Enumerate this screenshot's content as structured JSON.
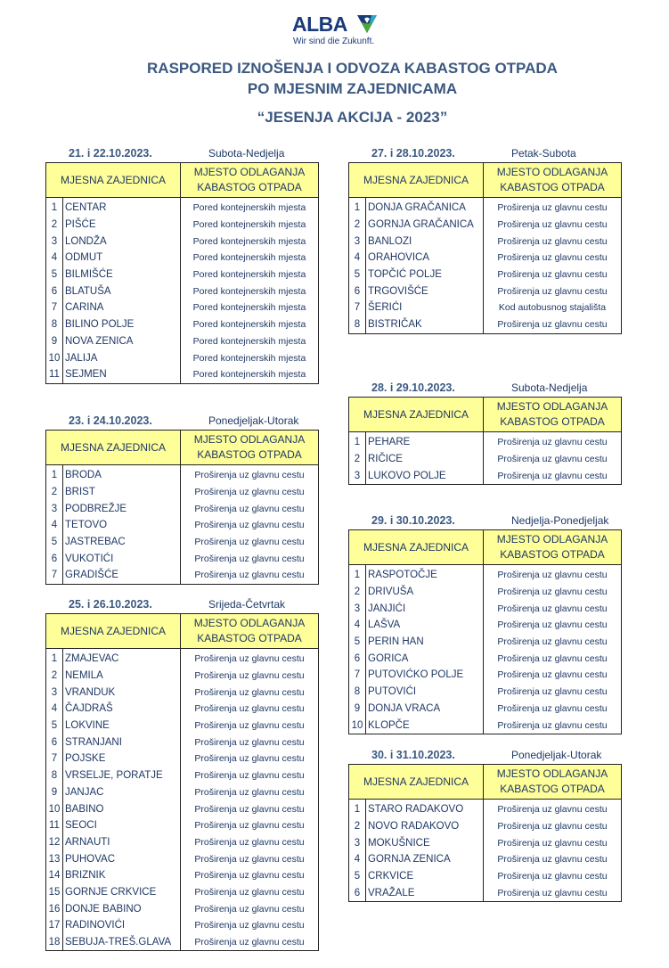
{
  "logo": {
    "brand": "ALBA",
    "tagline": "Wir sind die Zukunft.",
    "colors": {
      "blue": "#1a3a7a",
      "green": "#4aa53c",
      "teal": "#2aa8c8"
    }
  },
  "title": {
    "line1": "RASPORED IZNOŠENJA I ODVOZA KABASTOG OTPADA",
    "line2": "PO MJESNIM ZAJEDNICAMA",
    "subtitle": "“JESENJA AKCIJA - 2023”"
  },
  "headers": {
    "community": "MJESNA ZAJEDNICA",
    "place_line1": "MJESTO ODLAGANJA",
    "place_line2": "KABASTOG OTPADA"
  },
  "colors": {
    "header_fill": "#ffff99",
    "text": "#1f3864",
    "title": "#3b5880"
  },
  "schedules": [
    {
      "column": "left",
      "date": "21. i 22.10.2023.",
      "days": "Subota-Nedjelja",
      "rows": [
        [
          "1",
          "CENTAR",
          "Pored kontejnerskih mjesta"
        ],
        [
          "2",
          "PIŠĆE",
          "Pored kontejnerskih mjesta"
        ],
        [
          "3",
          "LONDŽA",
          "Pored kontejnerskih mjesta"
        ],
        [
          "4",
          "ODMUT",
          "Pored kontejnerskih mjesta"
        ],
        [
          "5",
          "BILMIŠĆE",
          "Pored kontejnerskih mjesta"
        ],
        [
          "6",
          "BLATUŠA",
          "Pored kontejnerskih mjesta"
        ],
        [
          "7",
          "CARINA",
          "Pored kontejnerskih mjesta"
        ],
        [
          "8",
          "BILINO POLJE",
          "Pored kontejnerskih mjesta"
        ],
        [
          "9",
          "NOVA ZENICA",
          "Pored kontejnerskih mjesta"
        ],
        [
          "10",
          "JALIJA",
          "Pored kontejnerskih mjesta"
        ],
        [
          "11",
          "SEJMEN",
          "Pored kontejnerskih mjesta"
        ]
      ]
    },
    {
      "column": "left",
      "date": "23. i 24.10.2023.",
      "days": "Ponedjeljak-Utorak",
      "rows": [
        [
          "1",
          "BRODA",
          "Proširenja uz glavnu cestu"
        ],
        [
          "2",
          "BRIST",
          "Proširenja uz glavnu cestu"
        ],
        [
          "3",
          "PODBREŽJE",
          "Proširenja uz glavnu cestu"
        ],
        [
          "4",
          "TETOVO",
          "Proširenja uz glavnu cestu"
        ],
        [
          "5",
          "JASTREBAC",
          "Proširenja uz glavnu cestu"
        ],
        [
          "6",
          "VUKOTIĆI",
          "Proširenja uz glavnu cestu"
        ],
        [
          "7",
          "GRADIŠĆE",
          "Proširenja uz glavnu cestu"
        ]
      ]
    },
    {
      "column": "left",
      "date": "25. i 26.10.2023.",
      "days": "Srijeda-Četvrtak",
      "rows": [
        [
          "1",
          "ZMAJEVAC",
          "Proširenja uz glavnu cestu"
        ],
        [
          "2",
          "NEMILA",
          "Proširenja uz glavnu cestu"
        ],
        [
          "3",
          "VRANDUK",
          "Proširenja uz glavnu cestu"
        ],
        [
          "4",
          "ČAJDRAŠ",
          "Proširenja uz glavnu cestu"
        ],
        [
          "5",
          "LOKVINE",
          "Proširenja uz glavnu cestu"
        ],
        [
          "6",
          "STRANJANI",
          "Proširenja uz glavnu cestu"
        ],
        [
          "7",
          "POJSKE",
          "Proširenja uz glavnu cestu"
        ],
        [
          "8",
          "VRSELJE, PORATJE",
          "Proširenja uz glavnu cestu"
        ],
        [
          "9",
          "JANJAC",
          "Proširenja uz glavnu cestu"
        ],
        [
          "10",
          "BABINO",
          "Proširenja uz glavnu cestu"
        ],
        [
          "11",
          "SEOCI",
          "Proširenja uz glavnu cestu"
        ],
        [
          "12",
          "ARNAUTI",
          "Proširenja uz glavnu cestu"
        ],
        [
          "13",
          "PUHOVAC",
          "Proširenja uz glavnu cestu"
        ],
        [
          "14",
          "BRIZNIK",
          "Proširenja uz glavnu cestu"
        ],
        [
          "15",
          "GORNJE CRKVICE",
          "Proširenja uz glavnu cestu"
        ],
        [
          "16",
          "DONJE BABINO",
          "Proširenja uz glavnu cestu"
        ],
        [
          "17",
          "RADINOVIĆI",
          "Proširenja uz glavnu cestu"
        ],
        [
          "18",
          "SEBUJA-TREŠ.GLAVA",
          "Proširenja uz glavnu cestu"
        ]
      ]
    },
    {
      "column": "right",
      "date": "27. i 28.10.2023.",
      "days": "Petak-Subota",
      "rows": [
        [
          "1",
          "DONJA GRAČANICA",
          "Proširenja uz glavnu cestu"
        ],
        [
          "2",
          "GORNJA GRAČANICA",
          "Proširenja uz glavnu cestu"
        ],
        [
          "3",
          "BANLOZI",
          "Proširenja uz glavnu cestu"
        ],
        [
          "4",
          "ORAHOVICA",
          "Proširenja uz glavnu cestu"
        ],
        [
          "5",
          "TOPČIĆ POLJE",
          "Proširenja uz glavnu cestu"
        ],
        [
          "6",
          "TRGOVIŠĆE",
          "Proširenja uz glavnu cestu"
        ],
        [
          "7",
          "ŠERIĆI",
          "Kod autobusnog stajališta"
        ],
        [
          "8",
          "BISTRIČAK",
          "Proširenja uz glavnu cestu"
        ]
      ]
    },
    {
      "column": "right",
      "date": "28. i 29.10.2023.",
      "days": "Subota-Nedjelja",
      "rows": [
        [
          "1",
          "PEHARE",
          "Proširenja uz glavnu cestu"
        ],
        [
          "2",
          "RIČICE",
          "Proširenja uz glavnu cestu"
        ],
        [
          "3",
          "LUKOVO POLJE",
          "Proširenja uz glavnu cestu"
        ]
      ]
    },
    {
      "column": "right",
      "date": "29. i 30.10.2023.",
      "days": "Nedjelja-Ponedjeljak",
      "rows": [
        [
          "1",
          "RASPOTOČJE",
          "Proširenja uz glavnu cestu"
        ],
        [
          "2",
          "DRIVUŠA",
          "Proširenja uz glavnu cestu"
        ],
        [
          "3",
          "JANJIĆI",
          "Proširenja uz glavnu cestu"
        ],
        [
          "4",
          "LAŠVA",
          "Proširenja uz glavnu cestu"
        ],
        [
          "5",
          "PERIN HAN",
          "Proširenja uz glavnu cestu"
        ],
        [
          "6",
          "GORICA",
          "Proširenja uz glavnu cestu"
        ],
        [
          "7",
          "PUTOVIĆKO POLJE",
          "Proširenja uz glavnu cestu"
        ],
        [
          "8",
          "PUTOVIĆI",
          "Proširenja uz glavnu cestu"
        ],
        [
          "9",
          "DONJA VRACA",
          "Proširenja uz glavnu cestu"
        ],
        [
          "10",
          "KLOPČE",
          "Proširenja uz glavnu cestu"
        ]
      ]
    },
    {
      "column": "right",
      "date": "30. i 31.10.2023.",
      "days": "Ponedjeljak-Utorak",
      "rows": [
        [
          "1",
          "STARO RADAKOVO",
          "Proširenja uz glavnu cestu"
        ],
        [
          "2",
          "NOVO RADAKOVO",
          "Proširenja uz glavnu cestu"
        ],
        [
          "3",
          "MOKUŠNICE",
          "Proširenja uz glavnu cestu"
        ],
        [
          "4",
          "GORNJA ZENICA",
          "Proširenja uz glavnu cestu"
        ],
        [
          "5",
          "CRKVICE",
          "Proširenja uz glavnu cestu"
        ],
        [
          "6",
          "VRAŽALE",
          "Proširenja uz glavnu cestu"
        ]
      ]
    }
  ]
}
